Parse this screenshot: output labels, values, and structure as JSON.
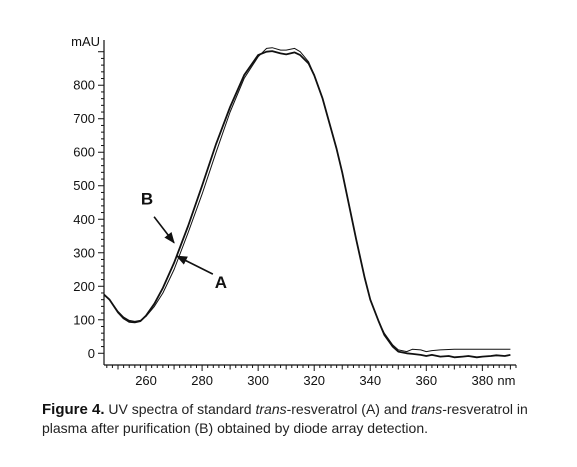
{
  "chart_data": {
    "type": "line",
    "yunit": "mAU",
    "xunit": "nm",
    "xlim": [
      245,
      392
    ],
    "ylim": [
      -35,
      935
    ],
    "yticks": [
      0,
      100,
      200,
      300,
      400,
      500,
      600,
      700,
      800
    ],
    "xticks": [
      260,
      280,
      300,
      320,
      340,
      360,
      380
    ],
    "xtick_labels": [
      "260",
      "280",
      "300",
      "320",
      "340",
      "360",
      "380"
    ],
    "grid": false,
    "line_color": "#111111",
    "series": [
      {
        "name": "A",
        "x": [
          245,
          247,
          250,
          252,
          254,
          256,
          258,
          260,
          263,
          266,
          270,
          275,
          280,
          285,
          290,
          295,
          300,
          303,
          305,
          308,
          310,
          313,
          315,
          318,
          320,
          323,
          325,
          328,
          330,
          333,
          335,
          338,
          340,
          343,
          345,
          348,
          350,
          353,
          355,
          358,
          360,
          362,
          365,
          370,
          375,
          380,
          385,
          390
        ],
        "y": [
          175,
          160,
          125,
          108,
          98,
          95,
          98,
          110,
          140,
          180,
          250,
          360,
          475,
          600,
          720,
          820,
          885,
          910,
          912,
          905,
          905,
          910,
          900,
          870,
          830,
          760,
          700,
          610,
          540,
          420,
          340,
          225,
          160,
          95,
          60,
          25,
          10,
          5,
          12,
          10,
          5,
          8,
          10,
          12,
          12,
          12,
          12,
          12
        ]
      },
      {
        "name": "B",
        "x": [
          245,
          247,
          250,
          252,
          254,
          256,
          258,
          260,
          263,
          266,
          270,
          275,
          280,
          285,
          290,
          295,
          300,
          303,
          305,
          308,
          310,
          313,
          315,
          318,
          320,
          323,
          325,
          328,
          330,
          333,
          335,
          338,
          340,
          343,
          345,
          348,
          350,
          353,
          355,
          358,
          360,
          362,
          365,
          368,
          370,
          373,
          375,
          378,
          380,
          383,
          385,
          388,
          390
        ],
        "y": [
          175,
          160,
          122,
          104,
          94,
          92,
          96,
          112,
          148,
          195,
          270,
          380,
          500,
          625,
          735,
          830,
          890,
          900,
          902,
          895,
          892,
          898,
          890,
          865,
          830,
          760,
          700,
          610,
          540,
          420,
          340,
          225,
          160,
          95,
          55,
          20,
          5,
          0,
          -2,
          -5,
          -8,
          -5,
          -10,
          -8,
          -12,
          -10,
          -8,
          -12,
          -10,
          -8,
          -6,
          -8,
          -5
        ]
      }
    ],
    "annotations": [
      {
        "label": "A",
        "arrow_to": [
          271,
          290
        ]
      },
      {
        "label": "B",
        "arrow_to": [
          270,
          330
        ]
      }
    ]
  },
  "caption": {
    "figure_label": "Figure 4.",
    "text_before": " UV spectra of standard ",
    "italic_1": "trans",
    "text_mid": "-resveratrol (A) and ",
    "italic_2": "trans",
    "text_after": "-resveratrol in plasma after purification (B) obtained by diode array detection."
  }
}
